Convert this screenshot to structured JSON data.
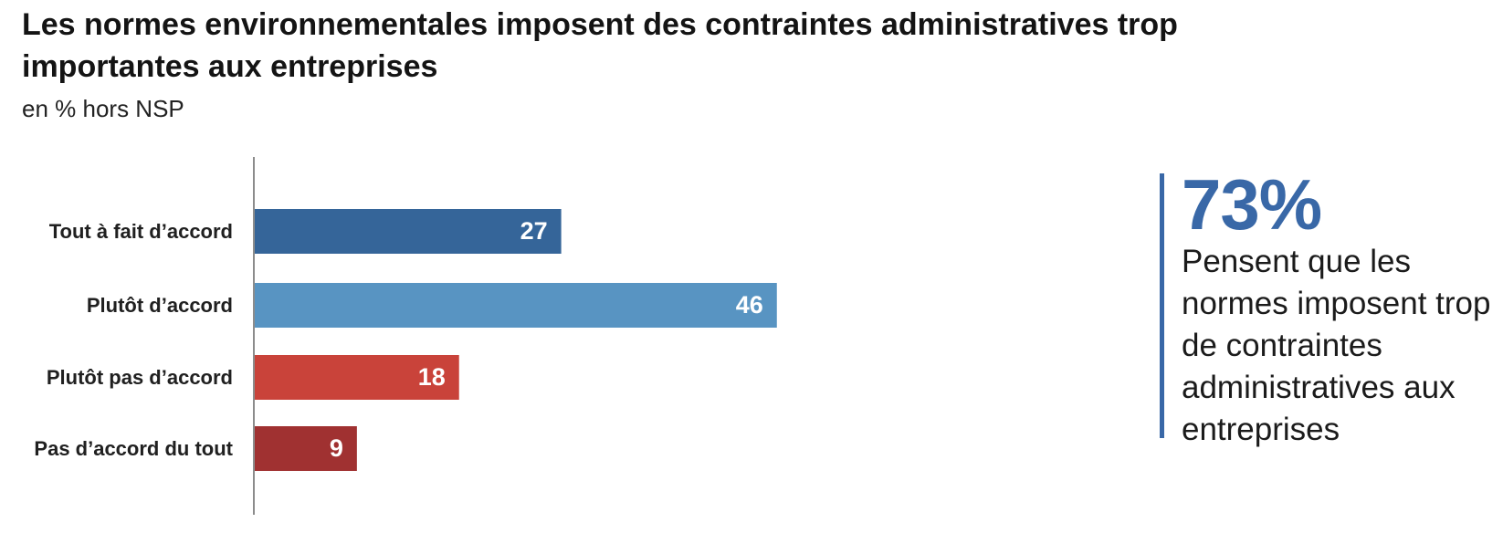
{
  "header": {
    "title": "Les normes environnementales imposent des contraintes administratives trop importantes aux entreprises",
    "subtitle": "en % hors NSP"
  },
  "callout": {
    "percent": "73%",
    "text": "Pensent que les normes imposent trop de contraintes administratives aux entreprises",
    "accent_color": "#3968a7"
  },
  "chart_data": {
    "type": "bar",
    "orientation": "horizontal",
    "categories": [
      "Tout à fait d’accord",
      "Plutôt d’accord",
      "Plutôt pas d’accord",
      "Pas d’accord du tout"
    ],
    "values": [
      27,
      46,
      18,
      9
    ],
    "colors": [
      "#356599",
      "#5894c2",
      "#c9433a",
      "#a03131"
    ],
    "value_labels": [
      "27",
      "46",
      "18",
      "9"
    ],
    "xlim": [
      0,
      100
    ],
    "grid": false,
    "legend": "none"
  }
}
